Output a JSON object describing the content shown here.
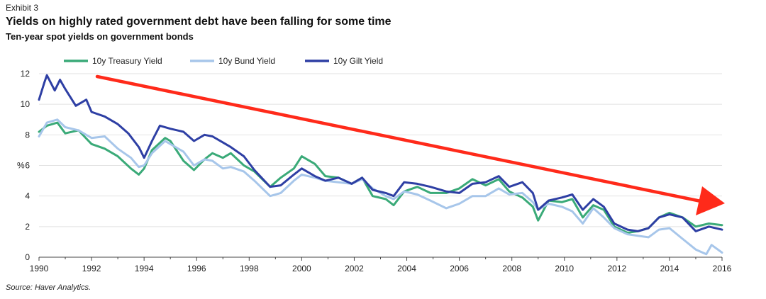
{
  "exhibit": "Exhibit 3",
  "title": "Yields on highly rated government debt have been falling for some time",
  "subtitle": "Ten-year spot yields on government bonds",
  "source": "Source: Haver Analytics.",
  "chart_data": {
    "type": "line",
    "ylabel": "%",
    "xlim": [
      1990,
      2016
    ],
    "ylim": [
      0,
      12
    ],
    "x_ticks": [
      1990,
      1992,
      1994,
      1996,
      1998,
      2000,
      2002,
      2004,
      2006,
      2008,
      2010,
      2012,
      2014,
      2016
    ],
    "y_ticks": [
      0,
      2,
      4,
      6,
      8,
      10,
      12
    ],
    "grid": "horizontal",
    "legend_position": "top",
    "annotation": "red arrow pointing downward from early 1992 to 2016",
    "annotation_color": "#ff2a1a",
    "series": [
      {
        "name": "10y Treasury Yield",
        "color": "#3aaa78",
        "points": [
          [
            1990,
            8.2
          ],
          [
            1990.3,
            8.6
          ],
          [
            1990.7,
            8.8
          ],
          [
            1991,
            8.1
          ],
          [
            1991.5,
            8.3
          ],
          [
            1992,
            7.4
          ],
          [
            1992.5,
            7.1
          ],
          [
            1993,
            6.6
          ],
          [
            1993.5,
            5.8
          ],
          [
            1993.8,
            5.4
          ],
          [
            1994,
            5.8
          ],
          [
            1994.3,
            7.0
          ],
          [
            1994.8,
            7.8
          ],
          [
            1995,
            7.6
          ],
          [
            1995.5,
            6.3
          ],
          [
            1995.9,
            5.7
          ],
          [
            1996.3,
            6.4
          ],
          [
            1996.6,
            6.8
          ],
          [
            1997,
            6.5
          ],
          [
            1997.3,
            6.8
          ],
          [
            1997.8,
            6.0
          ],
          [
            1998.2,
            5.6
          ],
          [
            1998.8,
            4.6
          ],
          [
            1999.2,
            5.2
          ],
          [
            1999.7,
            5.8
          ],
          [
            2000,
            6.6
          ],
          [
            2000.5,
            6.1
          ],
          [
            2000.9,
            5.3
          ],
          [
            2001.4,
            5.2
          ],
          [
            2001.9,
            4.8
          ],
          [
            2002.3,
            5.2
          ],
          [
            2002.7,
            4.0
          ],
          [
            2003.2,
            3.8
          ],
          [
            2003.5,
            3.4
          ],
          [
            2003.9,
            4.3
          ],
          [
            2004.4,
            4.6
          ],
          [
            2004.9,
            4.2
          ],
          [
            2005.5,
            4.2
          ],
          [
            2006,
            4.5
          ],
          [
            2006.5,
            5.1
          ],
          [
            2007,
            4.7
          ],
          [
            2007.5,
            5.1
          ],
          [
            2007.9,
            4.3
          ],
          [
            2008.4,
            3.9
          ],
          [
            2008.8,
            3.3
          ],
          [
            2009,
            2.4
          ],
          [
            2009.4,
            3.7
          ],
          [
            2009.9,
            3.6
          ],
          [
            2010.3,
            3.8
          ],
          [
            2010.7,
            2.6
          ],
          [
            2011.1,
            3.4
          ],
          [
            2011.5,
            3.1
          ],
          [
            2011.9,
            2.0
          ],
          [
            2012.4,
            1.6
          ],
          [
            2012.8,
            1.7
          ],
          [
            2013.2,
            1.9
          ],
          [
            2013.6,
            2.6
          ],
          [
            2014,
            2.9
          ],
          [
            2014.5,
            2.6
          ],
          [
            2015,
            2.0
          ],
          [
            2015.5,
            2.2
          ],
          [
            2016,
            2.1
          ]
        ]
      },
      {
        "name": "10y Bund Yield",
        "color": "#a7c6ea",
        "points": [
          [
            1990,
            7.9
          ],
          [
            1990.3,
            8.8
          ],
          [
            1990.7,
            9.0
          ],
          [
            1991,
            8.5
          ],
          [
            1991.5,
            8.3
          ],
          [
            1992,
            7.8
          ],
          [
            1992.5,
            7.9
          ],
          [
            1993,
            7.1
          ],
          [
            1993.5,
            6.5
          ],
          [
            1993.8,
            5.9
          ],
          [
            1994,
            6.0
          ],
          [
            1994.3,
            6.8
          ],
          [
            1994.8,
            7.6
          ],
          [
            1995,
            7.4
          ],
          [
            1995.5,
            6.9
          ],
          [
            1995.9,
            6.0
          ],
          [
            1996.3,
            6.4
          ],
          [
            1996.6,
            6.3
          ],
          [
            1997,
            5.8
          ],
          [
            1997.3,
            5.9
          ],
          [
            1997.8,
            5.6
          ],
          [
            1998.2,
            5.0
          ],
          [
            1998.8,
            4.0
          ],
          [
            1999.2,
            4.2
          ],
          [
            1999.7,
            5.0
          ],
          [
            2000,
            5.4
          ],
          [
            2000.5,
            5.2
          ],
          [
            2000.9,
            5.0
          ],
          [
            2001.4,
            4.9
          ],
          [
            2001.9,
            4.8
          ],
          [
            2002.3,
            5.1
          ],
          [
            2002.7,
            4.5
          ],
          [
            2003.2,
            4.0
          ],
          [
            2003.5,
            3.8
          ],
          [
            2003.9,
            4.3
          ],
          [
            2004.4,
            4.1
          ],
          [
            2004.9,
            3.7
          ],
          [
            2005.5,
            3.2
          ],
          [
            2006,
            3.5
          ],
          [
            2006.5,
            4.0
          ],
          [
            2007,
            4.0
          ],
          [
            2007.5,
            4.5
          ],
          [
            2007.9,
            4.1
          ],
          [
            2008.4,
            4.2
          ],
          [
            2008.8,
            3.6
          ],
          [
            2009,
            3.1
          ],
          [
            2009.4,
            3.5
          ],
          [
            2009.9,
            3.3
          ],
          [
            2010.3,
            3.0
          ],
          [
            2010.7,
            2.2
          ],
          [
            2011.1,
            3.2
          ],
          [
            2011.5,
            2.6
          ],
          [
            2011.9,
            1.9
          ],
          [
            2012.4,
            1.5
          ],
          [
            2012.8,
            1.4
          ],
          [
            2013.2,
            1.3
          ],
          [
            2013.6,
            1.8
          ],
          [
            2014,
            1.9
          ],
          [
            2014.5,
            1.2
          ],
          [
            2015,
            0.5
          ],
          [
            2015.4,
            0.2
          ],
          [
            2015.6,
            0.8
          ],
          [
            2016,
            0.3
          ]
        ]
      },
      {
        "name": "10y Gilt Yield",
        "color": "#2e3fa4",
        "points": [
          [
            1990,
            10.3
          ],
          [
            1990.2,
            11.4
          ],
          [
            1990.3,
            11.9
          ],
          [
            1990.6,
            10.9
          ],
          [
            1990.8,
            11.6
          ],
          [
            1991,
            11.0
          ],
          [
            1991.4,
            9.9
          ],
          [
            1991.8,
            10.3
          ],
          [
            1992,
            9.5
          ],
          [
            1992.5,
            9.2
          ],
          [
            1993,
            8.7
          ],
          [
            1993.4,
            8.1
          ],
          [
            1993.8,
            7.2
          ],
          [
            1994,
            6.5
          ],
          [
            1994.3,
            7.6
          ],
          [
            1994.6,
            8.6
          ],
          [
            1995,
            8.4
          ],
          [
            1995.5,
            8.2
          ],
          [
            1995.9,
            7.6
          ],
          [
            1996.3,
            8.0
          ],
          [
            1996.6,
            7.9
          ],
          [
            1997,
            7.5
          ],
          [
            1997.3,
            7.2
          ],
          [
            1997.8,
            6.6
          ],
          [
            1998.2,
            5.7
          ],
          [
            1998.8,
            4.6
          ],
          [
            1999.2,
            4.7
          ],
          [
            1999.7,
            5.4
          ],
          [
            2000,
            5.8
          ],
          [
            2000.5,
            5.3
          ],
          [
            2000.9,
            5.0
          ],
          [
            2001.4,
            5.2
          ],
          [
            2001.9,
            4.8
          ],
          [
            2002.3,
            5.2
          ],
          [
            2002.7,
            4.4
          ],
          [
            2003.2,
            4.2
          ],
          [
            2003.5,
            4.0
          ],
          [
            2003.9,
            4.9
          ],
          [
            2004.4,
            4.8
          ],
          [
            2004.9,
            4.6
          ],
          [
            2005.5,
            4.3
          ],
          [
            2006,
            4.2
          ],
          [
            2006.5,
            4.8
          ],
          [
            2007,
            4.9
          ],
          [
            2007.5,
            5.3
          ],
          [
            2007.9,
            4.6
          ],
          [
            2008.4,
            4.9
          ],
          [
            2008.8,
            4.2
          ],
          [
            2009,
            3.1
          ],
          [
            2009.4,
            3.7
          ],
          [
            2009.9,
            3.9
          ],
          [
            2010.3,
            4.1
          ],
          [
            2010.7,
            3.1
          ],
          [
            2011.1,
            3.8
          ],
          [
            2011.5,
            3.3
          ],
          [
            2011.9,
            2.2
          ],
          [
            2012.4,
            1.8
          ],
          [
            2012.8,
            1.7
          ],
          [
            2013.2,
            1.9
          ],
          [
            2013.6,
            2.6
          ],
          [
            2014,
            2.8
          ],
          [
            2014.5,
            2.6
          ],
          [
            2015,
            1.7
          ],
          [
            2015.5,
            2.0
          ],
          [
            2016,
            1.8
          ]
        ]
      }
    ]
  }
}
